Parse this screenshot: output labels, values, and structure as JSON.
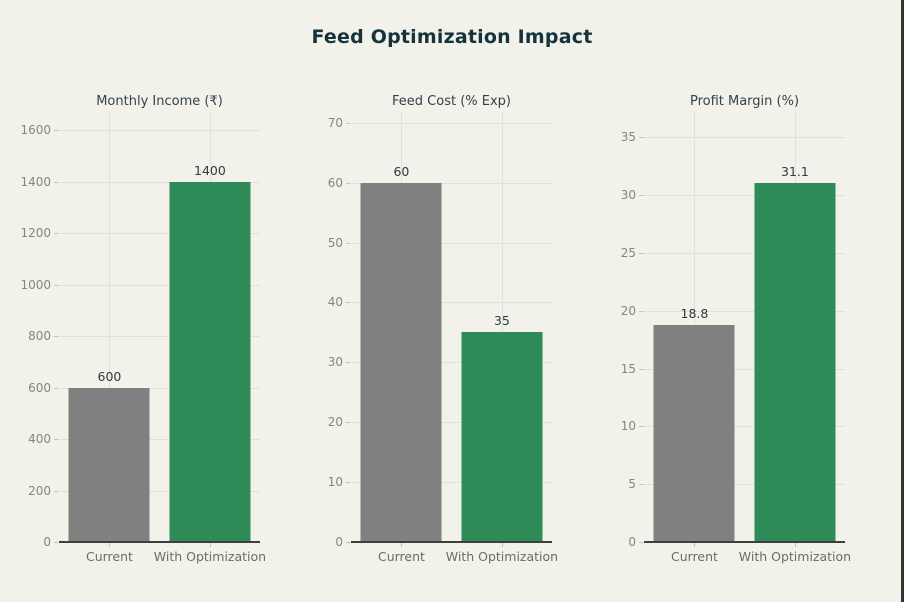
{
  "title": "Feed Optimization Impact",
  "colors": {
    "background": "#f2f1ea",
    "bar_current": "#808080",
    "bar_optimized": "#2e8b57",
    "title_text": "#14333d",
    "grid": "#e2e1d8",
    "axis_line": "#3e3e3e",
    "tick_text": "#86867f"
  },
  "chart_data": [
    {
      "type": "bar",
      "title": "Monthly Income (₹)",
      "categories": [
        "Current",
        "With Optimization"
      ],
      "values": [
        600,
        1400
      ],
      "value_labels": [
        "600",
        "1400"
      ],
      "series": [
        {
          "name": "Current",
          "value": 600,
          "color": "#808080"
        },
        {
          "name": "With Optimization",
          "value": 1400,
          "color": "#2e8b57"
        }
      ],
      "yticks": [
        0,
        200,
        400,
        600,
        800,
        1000,
        1200,
        1400,
        1600
      ],
      "ylim": [
        0,
        1670
      ],
      "grid": true,
      "legend": "none"
    },
    {
      "type": "bar",
      "title": "Feed Cost (% Exp)",
      "categories": [
        "Current",
        "With Optimization"
      ],
      "values": [
        60,
        35
      ],
      "value_labels": [
        "60",
        "35"
      ],
      "series": [
        {
          "name": "Current",
          "value": 60,
          "color": "#808080"
        },
        {
          "name": "With Optimization",
          "value": 35,
          "color": "#2e8b57"
        }
      ],
      "yticks": [
        0,
        10,
        20,
        30,
        40,
        50,
        60,
        70
      ],
      "ylim": [
        0,
        71.8
      ],
      "grid": true,
      "legend": "none"
    },
    {
      "type": "bar",
      "title": "Profit Margin (%)",
      "categories": [
        "Current",
        "With Optimization"
      ],
      "values": [
        18.8,
        31.1
      ],
      "value_labels": [
        "18.8",
        "31.1"
      ],
      "series": [
        {
          "name": "Current",
          "value": 18.8,
          "color": "#808080"
        },
        {
          "name": "With Optimization",
          "value": 31.1,
          "color": "#2e8b57"
        }
      ],
      "yticks": [
        0,
        5,
        10,
        15,
        20,
        25,
        30,
        35
      ],
      "ylim": [
        0,
        37.2
      ],
      "grid": true,
      "legend": "none"
    }
  ]
}
